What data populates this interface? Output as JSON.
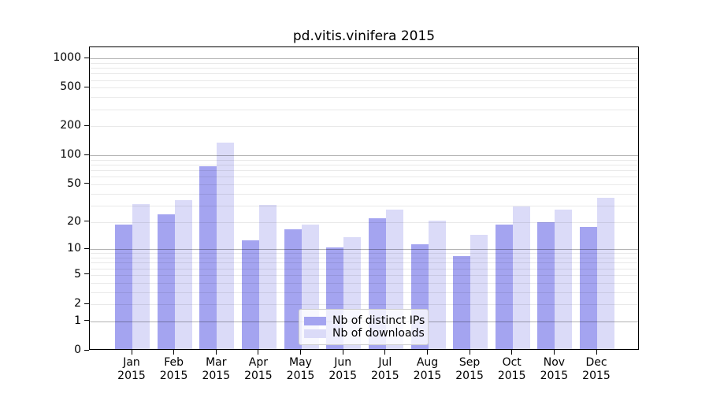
{
  "title": "pd.vitis.vinifera 2015",
  "legend": {
    "items": [
      {
        "label": "Nb of distinct IPs"
      },
      {
        "label": "Nb of downloads"
      }
    ]
  },
  "chart_data": {
    "type": "bar",
    "title": "pd.vitis.vinifera 2015",
    "y_scale": "log1p",
    "ylim": [
      0,
      1300
    ],
    "yticks": [
      0,
      1,
      2,
      5,
      10,
      20,
      50,
      100,
      200,
      500,
      1000
    ],
    "grid": true,
    "legend_position": "lower center",
    "categories": [
      "Jan 2015",
      "Feb 2015",
      "Mar 2015",
      "Apr 2015",
      "May 2015",
      "Jun 2015",
      "Jul 2015",
      "Aug 2015",
      "Sep 2015",
      "Oct 2015",
      "Nov 2015",
      "Dec 2015"
    ],
    "series": [
      {
        "name": "Nb of distinct IPs",
        "color": "#a4a4f0",
        "values": [
          18,
          23,
          75,
          12,
          16,
          10,
          21,
          11,
          8,
          18,
          19,
          17
        ]
      },
      {
        "name": "Nb of downloads",
        "color": "#dbdbf8",
        "values": [
          30,
          33,
          130,
          29,
          18,
          13,
          26,
          20,
          14,
          28,
          26,
          35
        ]
      }
    ]
  }
}
